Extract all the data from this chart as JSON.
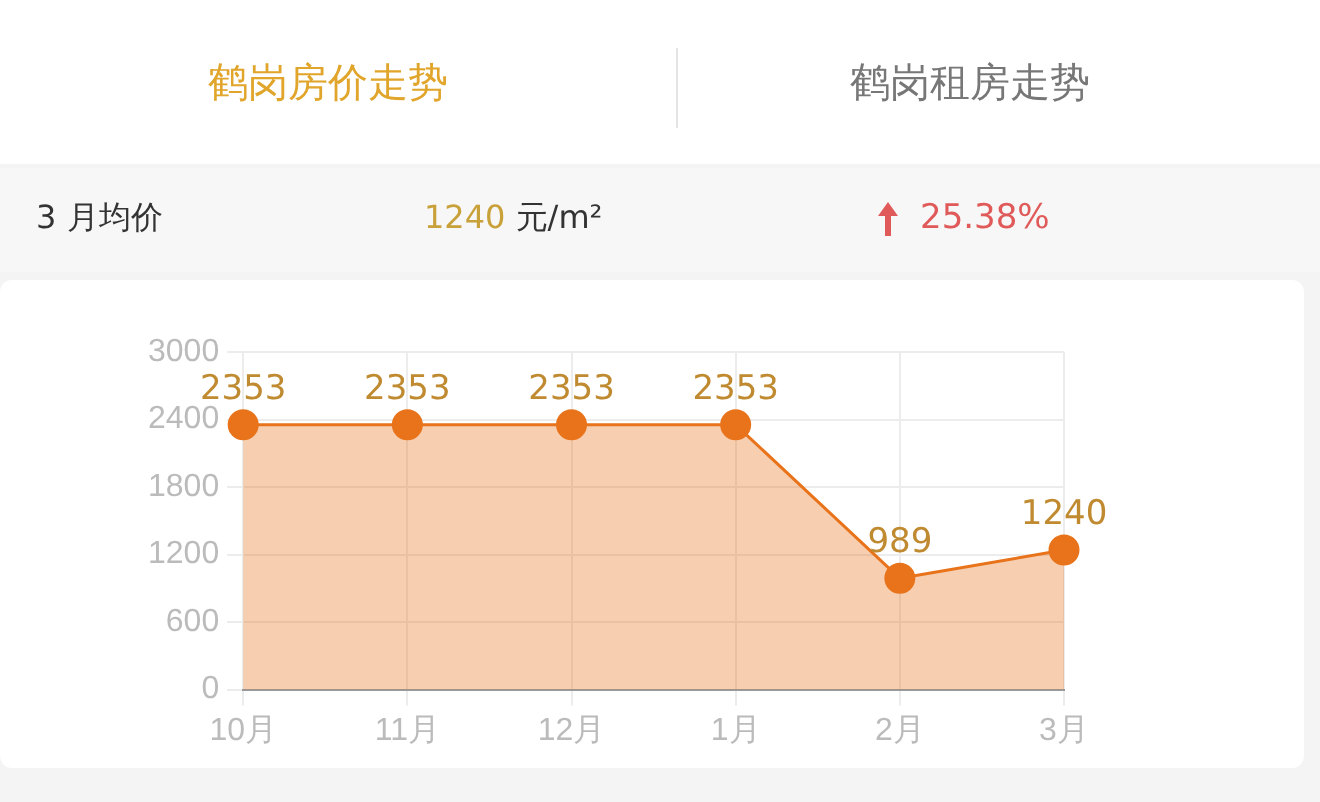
{
  "chart_data": {
    "type": "area",
    "title": "鹤岗房价走势",
    "annotations": [
      "鹤岗租房走势",
      "3 月均价",
      "1240 元/m²",
      "25.38%"
    ],
    "categories": [
      "10月",
      "11月",
      "12月",
      "1月",
      "2月",
      "3月"
    ],
    "values": [
      2353,
      2353,
      2353,
      2353,
      989,
      1240
    ],
    "color": "#e8731a",
    "ylim": [
      0,
      3000
    ],
    "yticks": [
      0,
      600,
      1200,
      1800,
      2400,
      3000
    ],
    "grid": true,
    "marker": "circle",
    "data_labels": true
  }
}
